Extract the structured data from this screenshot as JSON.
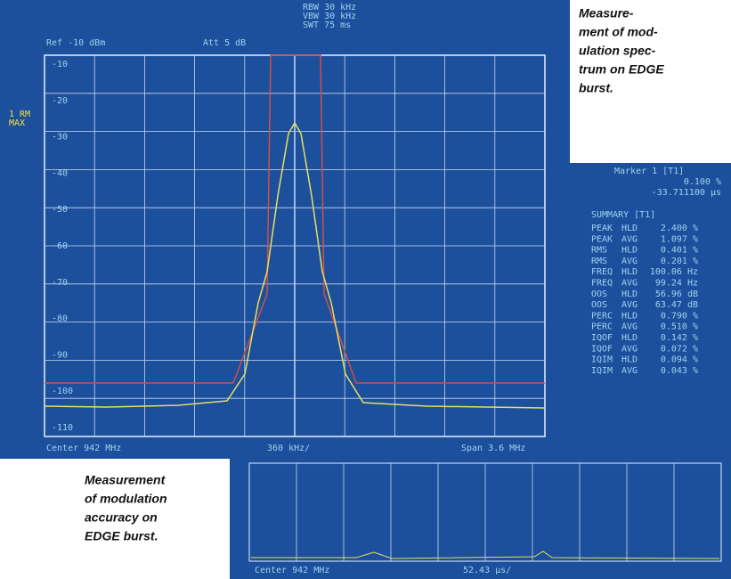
{
  "spectrum": {
    "header": [
      "RBW 30 kHz",
      "VBW 30 kHz",
      "SWT 75 ms"
    ],
    "ref": "Ref -10 dBm",
    "att": "Att 5 dB",
    "side": [
      "1 RM",
      "MAX"
    ],
    "levels": [
      "-10",
      "-20",
      "-30",
      "-40",
      "-50",
      "-60",
      "-70",
      "-80",
      "-90",
      "-100",
      "-110"
    ],
    "footer": {
      "center": "Center 942 MHz",
      "div": "360 kHz/",
      "span": "Span 3.6 MHz"
    }
  },
  "accuracy": {
    "marker": [
      "Marker 1 [T1]",
      "0.100 %",
      "-33.711100 µs"
    ],
    "summary_title": "SUMMARY [T1]",
    "rows": [
      [
        "PEAK",
        "HLD",
        "2.400 %"
      ],
      [
        "PEAK",
        "AVG",
        "1.097 %"
      ],
      [
        "RMS",
        "HLD",
        "0.401 %"
      ],
      [
        "RMS",
        "AVG",
        "0.201 %"
      ],
      [
        "FREQ",
        "HLD",
        "100.06 Hz"
      ],
      [
        "FREQ",
        "AVG",
        "99.24 Hz"
      ],
      [
        "OOS",
        "HLD",
        "56.96 dB"
      ],
      [
        "OOS",
        "AVG",
        "63.47 dB"
      ],
      [
        "PERC",
        "HLD",
        "0.790 %"
      ],
      [
        "PERC",
        "AVG",
        "0.510 %"
      ],
      [
        "IQOF",
        "HLD",
        "0.142 %"
      ],
      [
        "IQOF",
        "AVG",
        "0.072 %"
      ],
      [
        "IQIM",
        "HLD",
        "0.094 %"
      ],
      [
        "IQIM",
        "AVG",
        "0.043 %"
      ]
    ],
    "footer": {
      "center": "Center 942 MHz",
      "div": "52.43 µs/"
    }
  },
  "captions": {
    "spectrum": [
      "Measure-",
      "ment of mod-",
      "ulation spec-",
      "trum on EDGE",
      "burst."
    ],
    "accuracy": [
      "Measurement",
      "of modulation",
      "accuracy on",
      "EDGE burst."
    ]
  }
}
